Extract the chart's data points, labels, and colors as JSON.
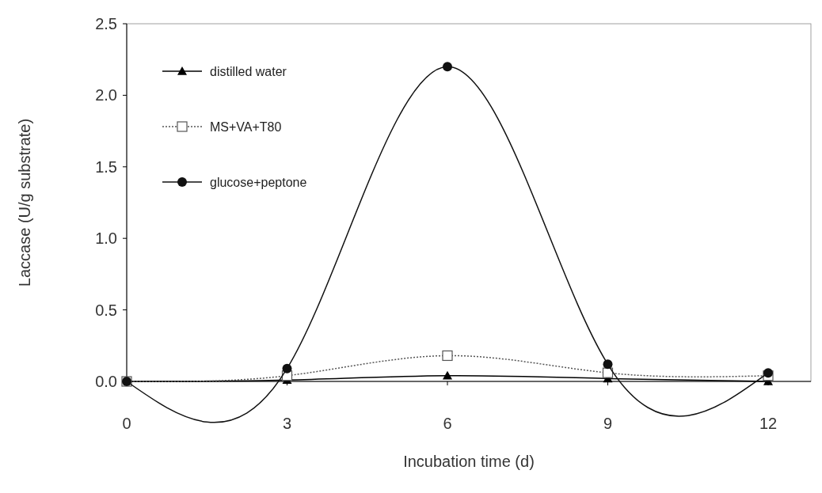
{
  "chart_data": {
    "type": "line",
    "xlabel": "Incubation time (d)",
    "ylabel": "Laccase (U/g substrate)",
    "x": [
      0,
      3,
      6,
      9,
      12
    ],
    "xlim": [
      0,
      12.8
    ],
    "xticks": [
      0,
      3,
      6,
      9,
      12
    ],
    "ylim": [
      0,
      2.5
    ],
    "yticks": [
      {
        "value": 0,
        "label": "0.0"
      },
      0.5,
      {
        "value": 1,
        "label": "1.0"
      },
      1.5,
      {
        "value": 2,
        "label": "2.0"
      },
      2.5
    ],
    "legend": "top left",
    "grid": false,
    "series": [
      {
        "name": "distilled water",
        "color": "#000000",
        "marker": "triangle",
        "line_style": "solid",
        "values": [
          0,
          0.01,
          0.04,
          0.02,
          0
        ]
      },
      {
        "name": "MS+VA+T80",
        "color": "#555555",
        "marker": "square",
        "line_style": "dotted",
        "values": [
          0,
          0.04,
          0.18,
          0.06,
          0.04
        ]
      },
      {
        "name": "glucose+peptone",
        "color": "#111111",
        "marker": "circle",
        "line_style": "solid",
        "values": [
          0,
          0.09,
          2.2,
          0.12,
          0.06
        ]
      }
    ]
  }
}
